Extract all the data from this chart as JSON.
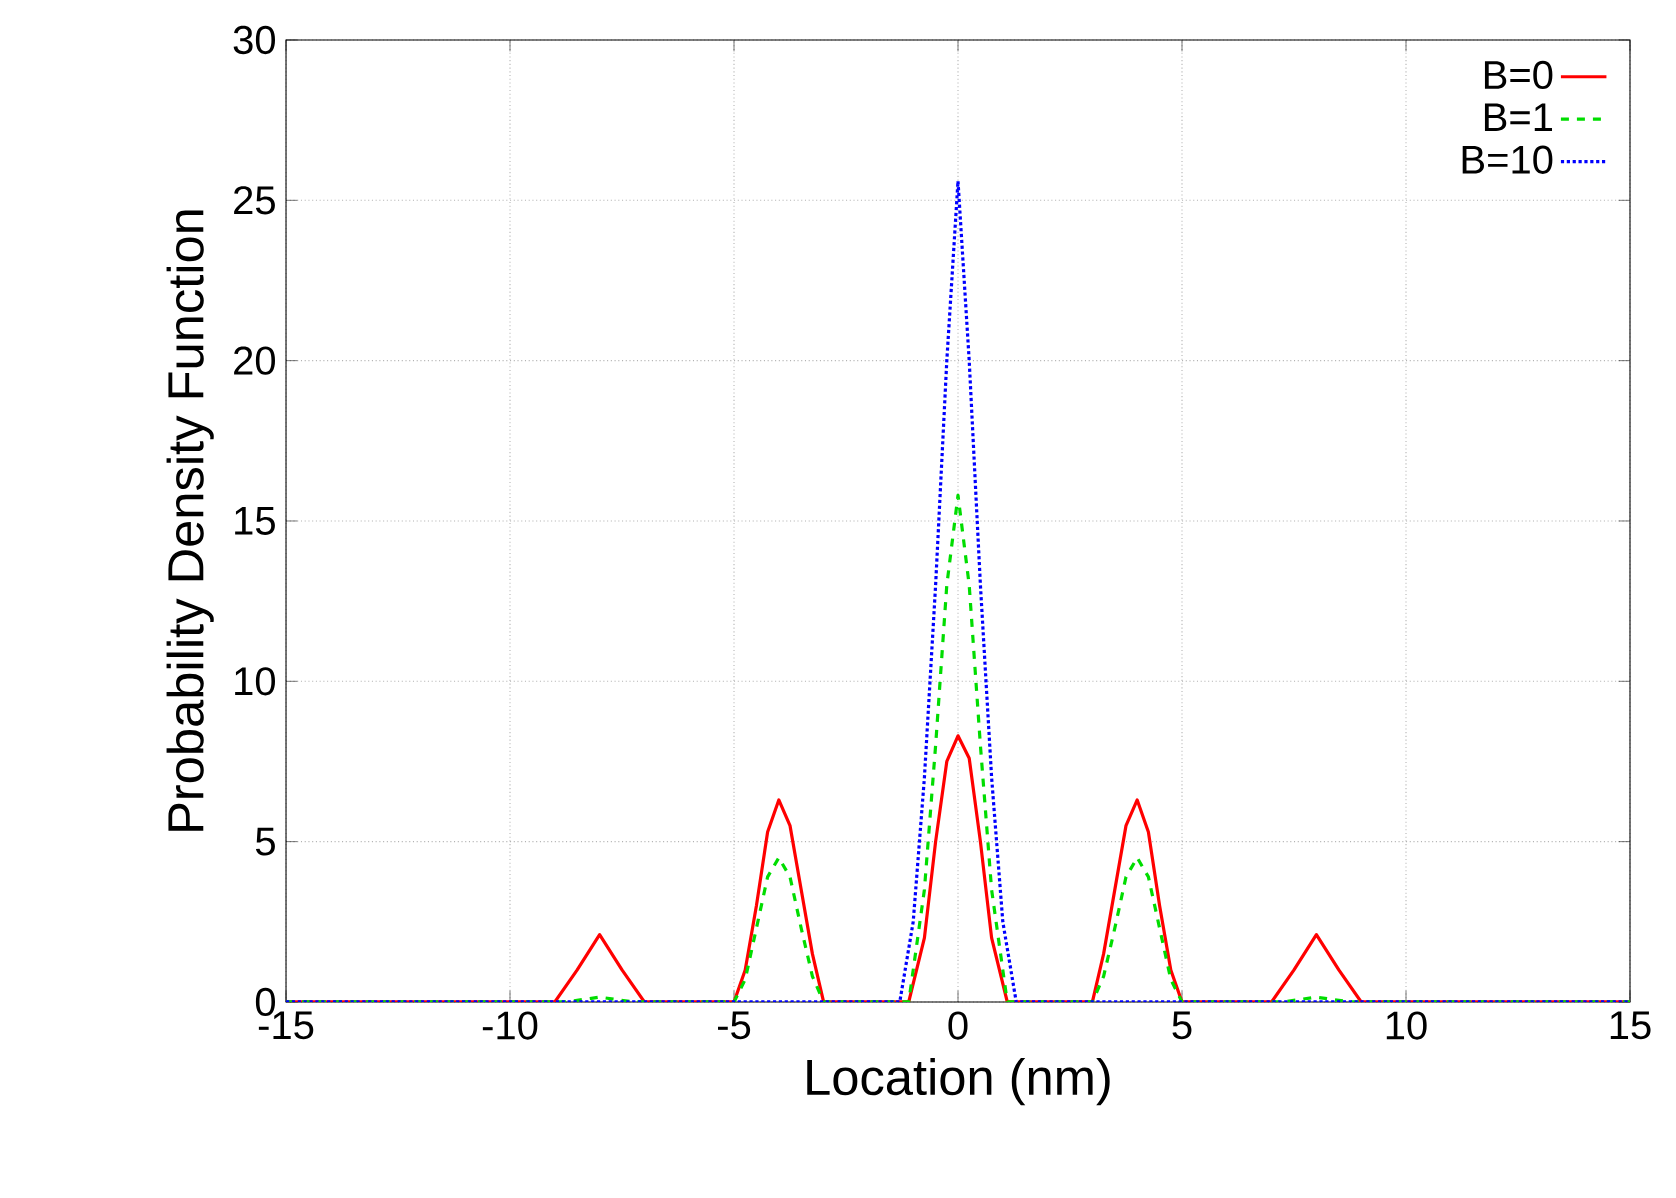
{
  "chart_data": {
    "type": "line",
    "xlabel": "Location (nm)",
    "ylabel": "Probability Density Function",
    "xlim": [
      -15,
      15
    ],
    "ylim": [
      0,
      30
    ],
    "xticks": [
      -15,
      -10,
      -5,
      0,
      5,
      10,
      15
    ],
    "yticks": [
      0,
      5,
      10,
      15,
      20,
      25,
      30
    ],
    "grid": true,
    "legend": "top right",
    "marker": "none",
    "series": [
      {
        "name": "B=0",
        "color": "#ff0000",
        "line_style": "solid",
        "x": [
          -15,
          -9,
          -8.5,
          -8,
          -7.5,
          -7,
          -5,
          -4.75,
          -4.5,
          -4.25,
          -4,
          -3.75,
          -3.5,
          -3.25,
          -3,
          -1.1,
          -0.75,
          -0.5,
          -0.25,
          0,
          0.25,
          0.5,
          0.75,
          1.1,
          3,
          3.25,
          3.5,
          3.75,
          4,
          4.25,
          4.5,
          4.75,
          5,
          7,
          7.5,
          8,
          8.5,
          9,
          15
        ],
        "values": [
          0,
          0,
          1.0,
          2.1,
          1.0,
          0,
          0,
          1.0,
          3.0,
          5.3,
          6.3,
          5.5,
          3.5,
          1.5,
          0,
          0,
          2,
          5,
          7.5,
          8.3,
          7.6,
          5,
          2,
          0,
          0,
          1.5,
          3.5,
          5.5,
          6.3,
          5.3,
          3.0,
          1.0,
          0,
          0,
          1.0,
          2.1,
          1.0,
          0,
          0
        ]
      },
      {
        "name": "B=1",
        "color": "#00dd00",
        "line_style": "dashed",
        "x": [
          -15,
          -8.75,
          -8,
          -7.25,
          -5,
          -4.75,
          -4.5,
          -4.25,
          -4,
          -3.75,
          -3.5,
          -3.25,
          -3,
          -1.1,
          -0.75,
          -0.5,
          -0.25,
          0,
          0.25,
          0.5,
          0.75,
          1.1,
          3,
          3.25,
          3.5,
          3.75,
          4,
          4.25,
          4.5,
          4.75,
          5,
          7.25,
          8,
          8.75,
          15
        ],
        "values": [
          0,
          0,
          0.15,
          0,
          0,
          0.7,
          2.3,
          3.9,
          4.5,
          3.9,
          2.3,
          0.8,
          0,
          0,
          3.5,
          8,
          13,
          15.8,
          13,
          8,
          3.5,
          0,
          0,
          0.8,
          2.3,
          3.9,
          4.5,
          3.9,
          2.3,
          0.7,
          0,
          0,
          0.15,
          0,
          0
        ]
      },
      {
        "name": "B=10",
        "color": "#0000ff",
        "line_style": "dotted",
        "x": [
          -15,
          -1.3,
          -1,
          -0.75,
          -0.5,
          -0.25,
          0,
          0.25,
          0.5,
          0.75,
          1,
          1.3,
          15
        ],
        "values": [
          0,
          0,
          2.5,
          7,
          13,
          20,
          25.6,
          20,
          13,
          7,
          2.5,
          0,
          0
        ]
      }
    ]
  }
}
